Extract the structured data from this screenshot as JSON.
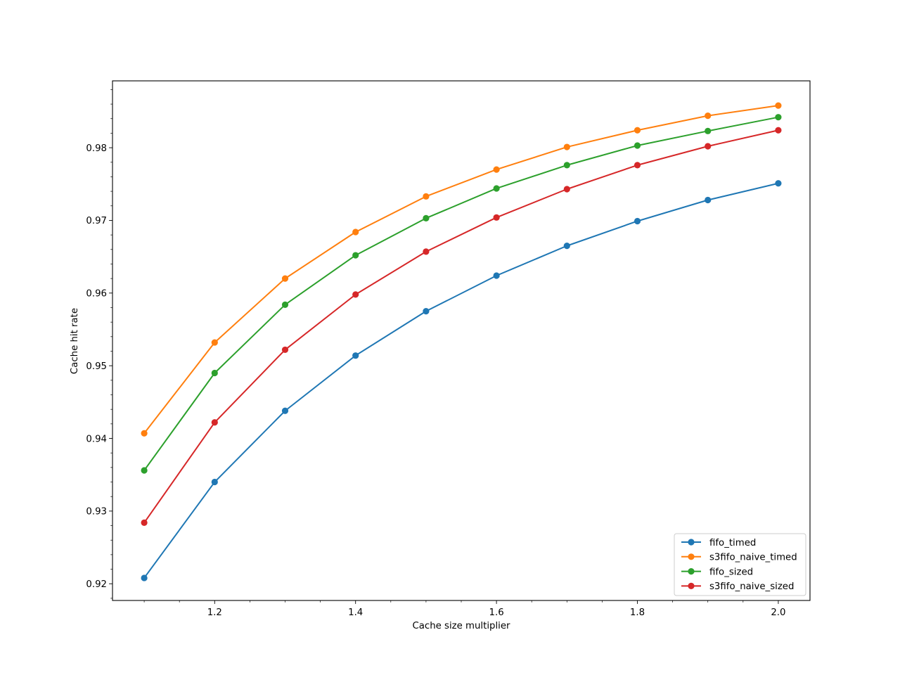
{
  "chart_data": {
    "type": "line",
    "title": "",
    "xlabel": "Cache size multiplier",
    "ylabel": "Cache hit rate",
    "x": [
      1.1,
      1.2,
      1.3,
      1.4,
      1.5,
      1.6,
      1.7,
      1.8,
      1.9,
      2.0
    ],
    "xlim": [
      1.055,
      2.045
    ],
    "ylim": [
      0.9177,
      0.9892
    ],
    "xticks": [
      "1.2",
      "1.4",
      "1.6",
      "1.8",
      "2.0"
    ],
    "xtick_values": [
      1.2,
      1.4,
      1.6,
      1.8,
      2.0
    ],
    "yticks": [
      "0.92",
      "0.93",
      "0.94",
      "0.95",
      "0.96",
      "0.97",
      "0.98"
    ],
    "ytick_values": [
      0.92,
      0.93,
      0.94,
      0.95,
      0.96,
      0.97,
      0.98
    ],
    "grid": false,
    "legend_position": "lower right",
    "series": [
      {
        "name": "fifo_timed",
        "color": "#1f77b4",
        "marker": "circle",
        "values": [
          0.9208,
          0.934,
          0.9438,
          0.9514,
          0.9575,
          0.9624,
          0.9665,
          0.9699,
          0.9728,
          0.9751
        ]
      },
      {
        "name": "s3fifo_naive_timed",
        "color": "#ff7f0e",
        "marker": "circle",
        "values": [
          0.9407,
          0.9532,
          0.962,
          0.9684,
          0.9733,
          0.977,
          0.9801,
          0.9824,
          0.9844,
          0.9858
        ]
      },
      {
        "name": "fifo_sized",
        "color": "#2ca02c",
        "marker": "circle",
        "values": [
          0.9356,
          0.949,
          0.9584,
          0.9652,
          0.9703,
          0.9744,
          0.9776,
          0.9803,
          0.9823,
          0.9842
        ]
      },
      {
        "name": "s3fifo_naive_sized",
        "color": "#d62728",
        "marker": "circle",
        "values": [
          0.9284,
          0.9422,
          0.9522,
          0.9598,
          0.9657,
          0.9704,
          0.9743,
          0.9776,
          0.9802,
          0.9824
        ]
      }
    ]
  }
}
